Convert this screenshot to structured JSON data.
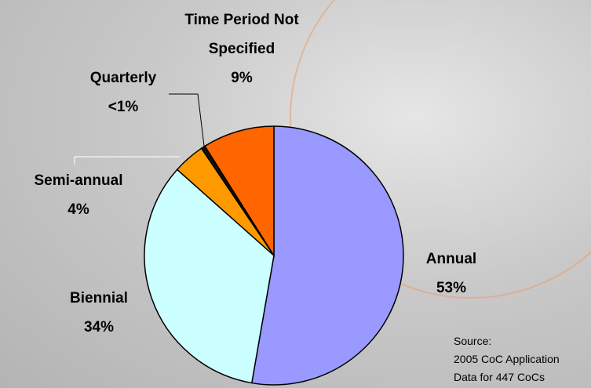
{
  "chart_data": {
    "type": "pie",
    "categories": [
      "Annual",
      "Biennial",
      "Semi-annual",
      "Quarterly",
      "Time Period Not Specified"
    ],
    "values": [
      53,
      34,
      4,
      0.5,
      9
    ],
    "value_labels": [
      "53%",
      "34%",
      "4%",
      "<1%",
      "9%"
    ],
    "colors": [
      "#9999ff",
      "#ccffff",
      "#ff9900",
      "#111111",
      "#ff6600"
    ],
    "source": [
      "Source:",
      "2005 CoC Application",
      "Data for 447 CoCs"
    ]
  }
}
